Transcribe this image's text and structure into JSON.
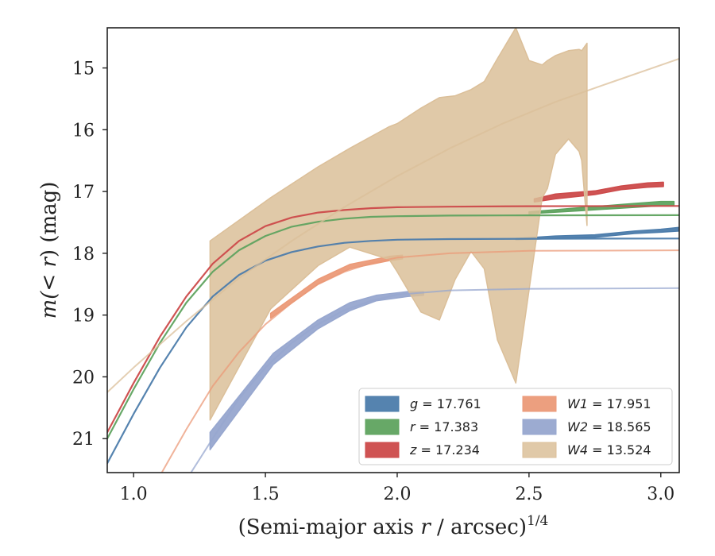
{
  "chart_data": {
    "type": "line",
    "xlabel": {
      "main": "(Semi-major axis ",
      "var": "r",
      "unit": " / arcsec)",
      "exp": "1/4"
    },
    "ylabel": {
      "pre": "m(",
      "mid": "< r",
      "post": ") (mag)"
    },
    "xlim": [
      0.9,
      3.07
    ],
    "ylim": [
      21.55,
      14.35
    ],
    "y_inverted": true,
    "grid": false,
    "legend_position": "lower-right",
    "xticks": [
      1.0,
      1.5,
      2.0,
      2.5,
      3.0
    ],
    "xtick_labels": [
      "1.0",
      "1.5",
      "2.0",
      "2.5",
      "3.0"
    ],
    "yticks": [
      15,
      16,
      17,
      18,
      19,
      20,
      21
    ],
    "ytick_labels": [
      "15",
      "16",
      "17",
      "18",
      "19",
      "20",
      "21"
    ],
    "series": [
      {
        "key": "g",
        "label": "g = 17.761",
        "color": "#4c7cab",
        "model": [
          [
            0.9,
            21.4
          ],
          [
            1.0,
            20.6
          ],
          [
            1.1,
            19.85
          ],
          [
            1.2,
            19.2
          ],
          [
            1.3,
            18.7
          ],
          [
            1.4,
            18.35
          ],
          [
            1.5,
            18.12
          ],
          [
            1.6,
            17.98
          ],
          [
            1.7,
            17.89
          ],
          [
            1.8,
            17.83
          ],
          [
            1.9,
            17.8
          ],
          [
            2.0,
            17.78
          ],
          [
            2.2,
            17.77
          ],
          [
            2.5,
            17.765
          ],
          [
            2.8,
            17.762
          ],
          [
            3.07,
            17.761
          ]
        ],
        "band": [
          [
            2.45,
            17.78,
            17.76
          ],
          [
            2.6,
            17.76,
            17.72
          ],
          [
            2.75,
            17.74,
            17.7
          ],
          [
            2.9,
            17.68,
            17.64
          ],
          [
            3.0,
            17.66,
            17.61
          ],
          [
            3.07,
            17.64,
            17.58
          ]
        ]
      },
      {
        "key": "r",
        "label": "r = 17.383",
        "color": "#5fa35f",
        "model": [
          [
            0.9,
            21.0
          ],
          [
            1.0,
            20.2
          ],
          [
            1.1,
            19.45
          ],
          [
            1.2,
            18.8
          ],
          [
            1.3,
            18.3
          ],
          [
            1.4,
            17.95
          ],
          [
            1.5,
            17.72
          ],
          [
            1.6,
            17.57
          ],
          [
            1.7,
            17.49
          ],
          [
            1.8,
            17.44
          ],
          [
            1.9,
            17.41
          ],
          [
            2.0,
            17.4
          ],
          [
            2.2,
            17.39
          ],
          [
            2.5,
            17.385
          ],
          [
            3.07,
            17.383
          ]
        ],
        "band": [
          [
            2.5,
            17.36,
            17.33
          ],
          [
            2.7,
            17.31,
            17.26
          ],
          [
            2.85,
            17.27,
            17.21
          ],
          [
            3.0,
            17.23,
            17.16
          ],
          [
            3.05,
            17.23,
            17.16
          ]
        ]
      },
      {
        "key": "z",
        "label": "z = 17.234",
        "color": "#cc4a4a",
        "model": [
          [
            0.9,
            20.9
          ],
          [
            1.0,
            20.1
          ],
          [
            1.1,
            19.35
          ],
          [
            1.2,
            18.7
          ],
          [
            1.3,
            18.17
          ],
          [
            1.4,
            17.8
          ],
          [
            1.5,
            17.56
          ],
          [
            1.6,
            17.42
          ],
          [
            1.7,
            17.34
          ],
          [
            1.8,
            17.3
          ],
          [
            1.9,
            17.27
          ],
          [
            2.0,
            17.255
          ],
          [
            2.2,
            17.245
          ],
          [
            2.5,
            17.238
          ],
          [
            3.07,
            17.234
          ]
        ],
        "band": [
          [
            2.52,
            17.17,
            17.12
          ],
          [
            2.6,
            17.12,
            17.04
          ],
          [
            2.75,
            17.05,
            16.99
          ],
          [
            2.85,
            16.97,
            16.91
          ],
          [
            2.95,
            16.93,
            16.86
          ],
          [
            3.01,
            16.92,
            16.85
          ]
        ]
      },
      {
        "key": "W1",
        "label": "W1 = 17.951",
        "color": "#eb9a78",
        "model": [
          [
            1.1,
            21.6
          ],
          [
            1.2,
            20.85
          ],
          [
            1.3,
            20.15
          ],
          [
            1.4,
            19.6
          ],
          [
            1.5,
            19.15
          ],
          [
            1.6,
            18.8
          ],
          [
            1.7,
            18.5
          ],
          [
            1.8,
            18.3
          ],
          [
            1.9,
            18.16
          ],
          [
            2.0,
            18.07
          ],
          [
            2.2,
            18.0
          ],
          [
            2.5,
            17.96
          ],
          [
            3.07,
            17.951
          ]
        ],
        "band": [
          [
            1.52,
            19.05,
            18.97
          ],
          [
            1.7,
            18.5,
            18.42
          ],
          [
            1.82,
            18.25,
            18.18
          ],
          [
            1.97,
            18.12,
            18.05
          ],
          [
            2.02,
            18.09,
            18.03
          ]
        ]
      },
      {
        "key": "W2",
        "label": "W2 = 18.565",
        "color": "#97a7cf",
        "model": [
          [
            1.21,
            21.6
          ],
          [
            1.3,
            21.0
          ],
          [
            1.4,
            20.35
          ],
          [
            1.5,
            19.85
          ],
          [
            1.6,
            19.45
          ],
          [
            1.7,
            19.15
          ],
          [
            1.8,
            18.92
          ],
          [
            1.9,
            18.77
          ],
          [
            2.0,
            18.67
          ],
          [
            2.2,
            18.6
          ],
          [
            2.5,
            18.575
          ],
          [
            3.07,
            18.565
          ]
        ],
        "band": [
          [
            1.29,
            21.18,
            20.9
          ],
          [
            1.53,
            19.8,
            19.62
          ],
          [
            1.7,
            19.22,
            19.08
          ],
          [
            1.82,
            18.93,
            18.8
          ],
          [
            1.92,
            18.77,
            18.68
          ],
          [
            2.04,
            18.7,
            18.62
          ],
          [
            2.1,
            18.68,
            18.62
          ]
        ]
      },
      {
        "key": "W4",
        "label": "W4 = 13.524",
        "color": "#dbbf99",
        "model": [
          [
            0.9,
            20.25
          ],
          [
            1.0,
            19.85
          ],
          [
            1.2,
            19.1
          ],
          [
            1.4,
            18.4
          ],
          [
            1.6,
            17.8
          ],
          [
            1.8,
            17.25
          ],
          [
            2.0,
            16.75
          ],
          [
            2.2,
            16.3
          ],
          [
            2.4,
            15.9
          ],
          [
            2.6,
            15.55
          ],
          [
            2.8,
            15.25
          ],
          [
            3.07,
            14.85
          ]
        ],
        "band": [
          [
            1.29,
            20.7,
            17.8
          ],
          [
            1.52,
            18.9,
            17.1
          ],
          [
            1.7,
            18.2,
            16.6
          ],
          [
            1.82,
            17.9,
            16.3
          ],
          [
            1.97,
            18.1,
            15.95
          ],
          [
            2.0,
            18.3,
            15.9
          ],
          [
            2.09,
            18.95,
            15.65
          ],
          [
            2.16,
            19.08,
            15.48
          ],
          [
            2.22,
            18.42,
            15.45
          ],
          [
            2.28,
            17.97,
            15.35
          ],
          [
            2.33,
            18.25,
            15.22
          ],
          [
            2.38,
            19.4,
            14.85
          ],
          [
            2.45,
            20.1,
            14.35
          ],
          [
            2.5,
            18.6,
            14.88
          ],
          [
            2.55,
            17.1,
            14.95
          ],
          [
            2.57,
            16.95,
            14.88
          ],
          [
            2.6,
            16.4,
            14.8
          ],
          [
            2.65,
            16.15,
            14.72
          ],
          [
            2.69,
            16.35,
            14.7
          ],
          [
            2.7,
            16.5,
            14.72
          ],
          [
            2.72,
            17.55,
            14.6
          ]
        ]
      }
    ]
  }
}
